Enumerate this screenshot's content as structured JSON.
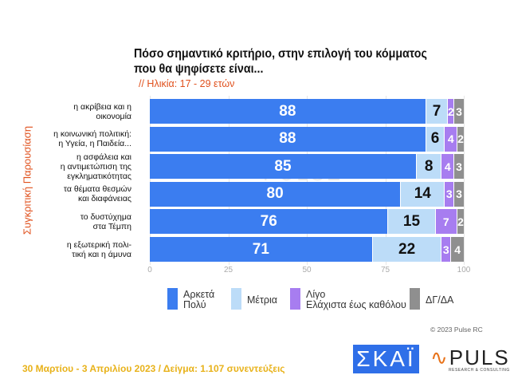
{
  "title_line1": "Πόσο σημαντικό κριτήριο, στην επιλογή του κόμματος",
  "title_line2": "που θα ψηφίσετε είναι...",
  "subtitle": "// Ηλικία: 17 - 29 ετών",
  "copyright": "© 2023 Pulse RC",
  "footer": "30 Μαρτίου - 3  Απριλίου  2023  /  Δείγμα:  1.107 συνεντεύξεις",
  "logos": {
    "skai": "ΣΚΑΪ",
    "pulse": "PULSE",
    "pulse_sub": "RESEARCH & CONSULTING"
  },
  "chart_data": {
    "type": "bar",
    "orientation": "horizontal",
    "stacked": true,
    "title": "Πόσο σημαντικό κριτήριο, στην επιλογή του κόμματος που θα ψηφίσετε είναι...",
    "ylabel": "Συγκριτική  Παρουσίαση",
    "xlim": [
      0,
      100
    ],
    "xticks": [
      "0",
      "25",
      "50",
      "75",
      "100"
    ],
    "grid": true,
    "legend_position": "bottom",
    "categories": [
      [
        "η ακρίβεια και η",
        "οικονομία"
      ],
      [
        "η κοινωνική πολιτική:",
        "η Υγεία, η Παιδεία..."
      ],
      [
        "η ασφάλεια και",
        "η αντιμετώπιση της",
        "εγκληματικότητας"
      ],
      [
        "τα θέματα θεσμών",
        "και διαφάνειας"
      ],
      [
        "το δυστύχημα",
        "στα Τέμπη"
      ],
      [
        "η εξωτερική πολι-",
        "τική και η άμυνα"
      ]
    ],
    "series": [
      {
        "name": "Αρκετά Πολύ",
        "legend_lines": [
          "Αρκετά",
          "Πολύ"
        ],
        "color": "#3b7df0",
        "label_color": "#ffffff",
        "values": [
          88,
          88,
          85,
          80,
          76,
          71
        ]
      },
      {
        "name": "Μέτρια",
        "legend_lines": [
          "Μέτρια"
        ],
        "color": "#bcdcf8",
        "label_color": "#111111",
        "values": [
          7,
          6,
          8,
          14,
          15,
          22
        ]
      },
      {
        "name": "Λίγο Ελάχιστα έως καθόλου",
        "legend_lines": [
          "Λίγο",
          "Ελάχιστα έως καθόλου"
        ],
        "color": "#a77df0",
        "label_color": "#ffffff",
        "values": [
          2,
          4,
          4,
          3,
          7,
          3
        ]
      },
      {
        "name": "ΔΓ/ΔΑ",
        "legend_lines": [
          "ΔΓ/ΔΑ"
        ],
        "color": "#8f8f8f",
        "label_color": "#ffffff",
        "values": [
          3,
          2,
          3,
          3,
          2,
          4
        ]
      }
    ]
  }
}
